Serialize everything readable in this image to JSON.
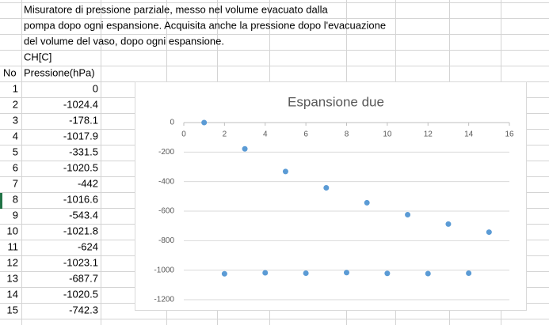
{
  "sheet": {
    "notes": [
      "Misuratore di pressione parziale, messo nel volume evacuato dalla",
      "pompa dopo ogni espansione. Acquisita anche la pressione dopo l'evacuazione",
      "del volume del vaso, dopo ogni espansione.",
      "CH[C]"
    ],
    "headers": [
      "No",
      "Pressione(hPa)"
    ],
    "rows": [
      [
        1,
        0
      ],
      [
        2,
        -1024.4
      ],
      [
        3,
        -178.1
      ],
      [
        4,
        -1017.9
      ],
      [
        5,
        -331.5
      ],
      [
        6,
        -1020.5
      ],
      [
        7,
        -442
      ],
      [
        8,
        -1016.6
      ],
      [
        9,
        -543.4
      ],
      [
        10,
        -1021.8
      ],
      [
        11,
        -624
      ],
      [
        12,
        -1023.1
      ],
      [
        13,
        -687.7
      ],
      [
        14,
        -1020.5
      ],
      [
        15,
        -742.3
      ]
    ]
  },
  "chart_data": {
    "type": "scatter",
    "title": "Espansione due",
    "x": [
      1,
      2,
      3,
      4,
      5,
      6,
      7,
      8,
      9,
      10,
      11,
      12,
      13,
      14,
      15
    ],
    "values": [
      0,
      -1024.4,
      -178.1,
      -1017.9,
      -331.5,
      -1020.5,
      -442,
      -1016.6,
      -543.4,
      -1021.8,
      -624,
      -1023.1,
      -687.7,
      -1020.5,
      -742.3
    ],
    "color": "#5b9bd5",
    "xlim": [
      0,
      16
    ],
    "xticks": [
      0,
      2,
      4,
      6,
      8,
      10,
      12,
      14,
      16
    ],
    "ylim": [
      -1200,
      0
    ],
    "yticks": [
      0,
      -200,
      -400,
      -600,
      -800,
      -1000,
      -1200
    ],
    "grid": true
  }
}
